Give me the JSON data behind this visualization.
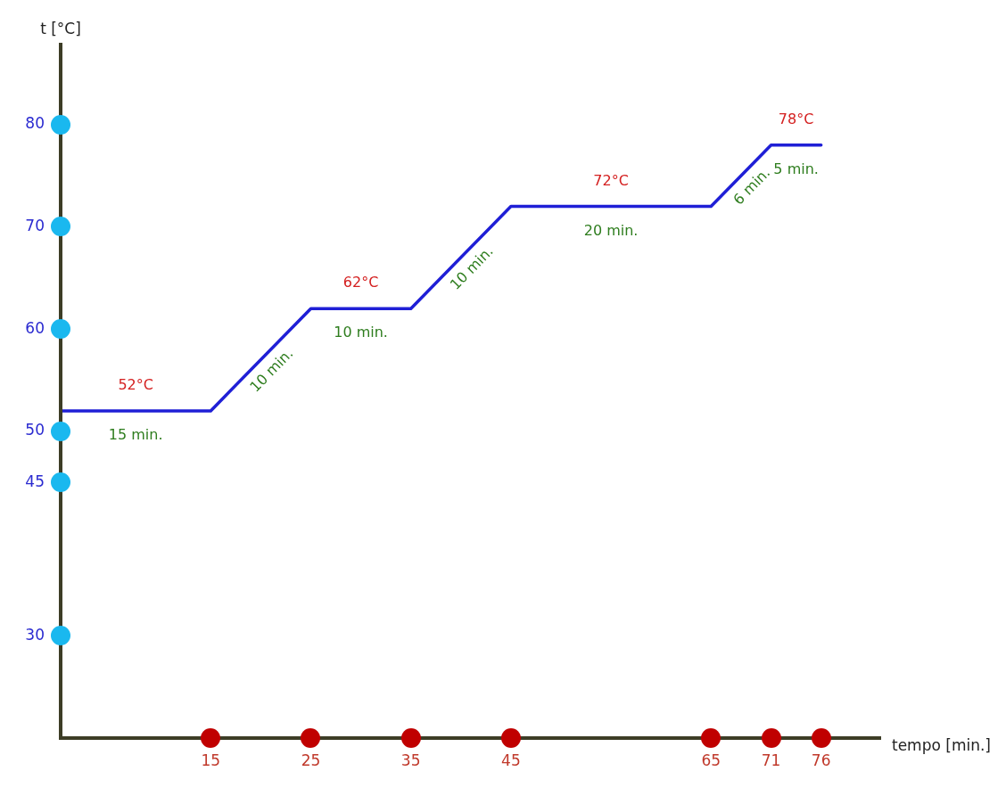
{
  "chart_data": {
    "type": "line",
    "xlabel": "tempo [min.]",
    "ylabel": "t [°C]",
    "series": [
      {
        "color": "#1f1fd6",
        "x": [
          0,
          15,
          25,
          35,
          45,
          65,
          71,
          76
        ],
        "values": [
          52,
          52,
          62,
          62,
          72,
          72,
          78,
          78
        ]
      }
    ],
    "xlim": [
      0,
      82
    ],
    "xticks": [
      15,
      25,
      35,
      45,
      65,
      71,
      76
    ],
    "ylim": [
      20,
      88
    ],
    "yticks": [
      30,
      45,
      50,
      60,
      70,
      80
    ],
    "grid": false,
    "legend": false,
    "marker": "none",
    "line_style": "solid",
    "annotations": [
      {
        "text": "52°C",
        "x": 7.5,
        "y": 52
      },
      {
        "text": "15 min.",
        "x": 7.5,
        "y": 52
      },
      {
        "text": "10 min.",
        "x": 20,
        "y": 57
      },
      {
        "text": "62°C",
        "x": 30,
        "y": 62
      },
      {
        "text": "10 min.",
        "x": 30,
        "y": 62
      },
      {
        "text": "10 min.",
        "x": 40,
        "y": 67
      },
      {
        "text": "72°C",
        "x": 55,
        "y": 72
      },
      {
        "text": "20 min.",
        "x": 55,
        "y": 72
      },
      {
        "text": "6 min.",
        "x": 68,
        "y": 75
      },
      {
        "text": "78°C",
        "x": 73.5,
        "y": 78
      },
      {
        "text": "5 min.",
        "x": 73.5,
        "y": 78
      }
    ]
  }
}
